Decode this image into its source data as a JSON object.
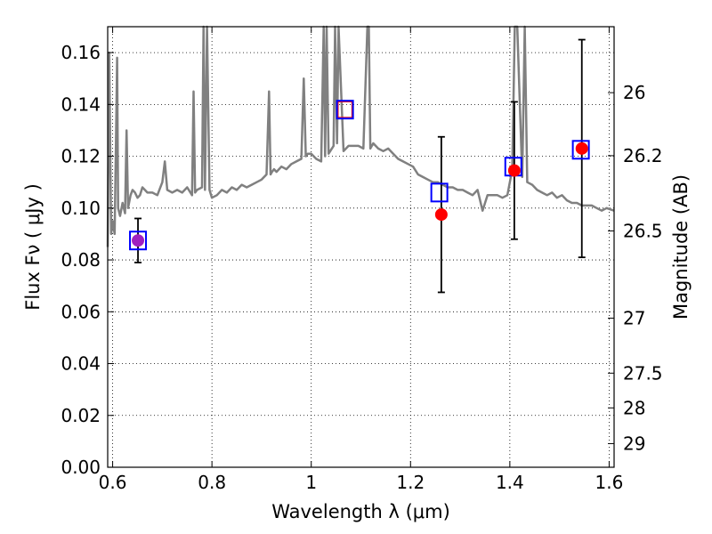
{
  "chart_data": {
    "type": "scatter",
    "xlabel": "Wavelength  λ (μm)",
    "ylabel": "Flux  Fν  ( μJy )",
    "y2label": "Magnitude (AB)",
    "xlim": [
      0.59,
      1.61
    ],
    "ylim": [
      0.0,
      0.17
    ],
    "grid": "dotted",
    "x_ticks": [
      0.6,
      0.8,
      1.0,
      1.2,
      1.4,
      1.6
    ],
    "x_tick_labels": [
      "0.6",
      "0.8",
      "1",
      "1.2",
      "1.4",
      "1.6"
    ],
    "y_ticks": [
      0.0,
      0.02,
      0.04,
      0.06,
      0.08,
      0.1,
      0.12,
      0.14,
      0.16
    ],
    "y_tick_labels": [
      "0.00",
      "0.02",
      "0.04",
      "0.06",
      "0.08",
      "0.10",
      "0.12",
      "0.14",
      "0.16"
    ],
    "y2_ticks": [
      26,
      26.2,
      26.5,
      27,
      27.5,
      28,
      29
    ],
    "y2_tick_labels": [
      "26",
      "26.2",
      "26.5",
      "27",
      "27.5",
      "28",
      "29"
    ],
    "colors": {
      "spectrum": "#808080",
      "observed": "#ff0000",
      "observed_first": "#a020c0",
      "model_box": "#0000ff",
      "model_box_inner_red": "#ff0000",
      "errorbar": "#000000"
    },
    "spectrum": {
      "x": [
        0.59,
        0.593,
        0.597,
        0.6,
        0.604,
        0.607,
        0.609,
        0.611,
        0.615,
        0.62,
        0.625,
        0.628,
        0.631,
        0.636,
        0.64,
        0.645,
        0.65,
        0.655,
        0.66,
        0.665,
        0.67,
        0.68,
        0.69,
        0.7,
        0.705,
        0.71,
        0.72,
        0.73,
        0.74,
        0.75,
        0.76,
        0.763,
        0.766,
        0.77,
        0.78,
        0.783,
        0.786,
        0.79,
        0.795,
        0.8,
        0.81,
        0.82,
        0.83,
        0.84,
        0.85,
        0.86,
        0.87,
        0.88,
        0.89,
        0.9,
        0.91,
        0.915,
        0.918,
        0.921,
        0.925,
        0.93,
        0.94,
        0.95,
        0.96,
        0.97,
        0.98,
        0.985,
        0.989,
        0.993,
        1.0,
        1.01,
        1.02,
        1.025,
        1.028,
        1.031,
        1.035,
        1.045,
        1.048,
        1.052,
        1.055,
        1.065,
        1.075,
        1.085,
        1.095,
        1.105,
        1.113,
        1.116,
        1.119,
        1.125,
        1.135,
        1.145,
        1.155,
        1.165,
        1.175,
        1.185,
        1.195,
        1.205,
        1.215,
        1.225,
        1.235,
        1.245,
        1.255,
        1.265,
        1.275,
        1.285,
        1.295,
        1.305,
        1.315,
        1.325,
        1.335,
        1.345,
        1.355,
        1.365,
        1.375,
        1.385,
        1.395,
        1.405,
        1.41,
        1.415,
        1.425,
        1.43,
        1.435,
        1.445,
        1.455,
        1.465,
        1.475,
        1.485,
        1.495,
        1.505,
        1.515,
        1.525,
        1.535,
        1.545,
        1.555,
        1.565,
        1.575,
        1.585,
        1.595,
        1.61
      ],
      "y": [
        0.085,
        0.16,
        0.09,
        0.095,
        0.09,
        0.13,
        0.158,
        0.1,
        0.097,
        0.102,
        0.098,
        0.13,
        0.1,
        0.105,
        0.107,
        0.106,
        0.104,
        0.105,
        0.108,
        0.107,
        0.106,
        0.106,
        0.105,
        0.11,
        0.118,
        0.107,
        0.106,
        0.107,
        0.106,
        0.108,
        0.105,
        0.145,
        0.106,
        0.107,
        0.108,
        0.17,
        0.107,
        0.17,
        0.107,
        0.104,
        0.105,
        0.107,
        0.106,
        0.108,
        0.107,
        0.109,
        0.108,
        0.109,
        0.11,
        0.111,
        0.113,
        0.145,
        0.113,
        0.114,
        0.115,
        0.114,
        0.116,
        0.115,
        0.117,
        0.118,
        0.119,
        0.15,
        0.12,
        0.121,
        0.121,
        0.119,
        0.118,
        0.17,
        0.12,
        0.17,
        0.121,
        0.124,
        0.17,
        0.125,
        0.17,
        0.122,
        0.124,
        0.124,
        0.124,
        0.123,
        0.17,
        0.17,
        0.123,
        0.125,
        0.123,
        0.122,
        0.123,
        0.121,
        0.119,
        0.118,
        0.117,
        0.116,
        0.113,
        0.112,
        0.111,
        0.11,
        0.11,
        0.109,
        0.108,
        0.108,
        0.107,
        0.107,
        0.106,
        0.105,
        0.107,
        0.099,
        0.105,
        0.105,
        0.105,
        0.104,
        0.105,
        0.115,
        0.17,
        0.17,
        0.112,
        0.17,
        0.11,
        0.109,
        0.107,
        0.106,
        0.105,
        0.106,
        0.104,
        0.105,
        0.103,
        0.102,
        0.102,
        0.101,
        0.101,
        0.101,
        0.1,
        0.099,
        0.1,
        0.099
      ]
    },
    "series": [
      {
        "marker": "circle",
        "x": [
          0.651,
          1.262,
          1.409,
          1.545
        ],
        "y": [
          0.0875,
          0.0975,
          0.1145,
          0.123
        ],
        "yerr": [
          0.0085,
          0.03,
          0.0265,
          0.042
        ]
      },
      {
        "marker": "square-open",
        "x": [
          0.651,
          1.068,
          1.258,
          1.407,
          1.543
        ],
        "y": [
          0.0875,
          0.138,
          0.106,
          0.116,
          0.1225
        ]
      }
    ]
  }
}
